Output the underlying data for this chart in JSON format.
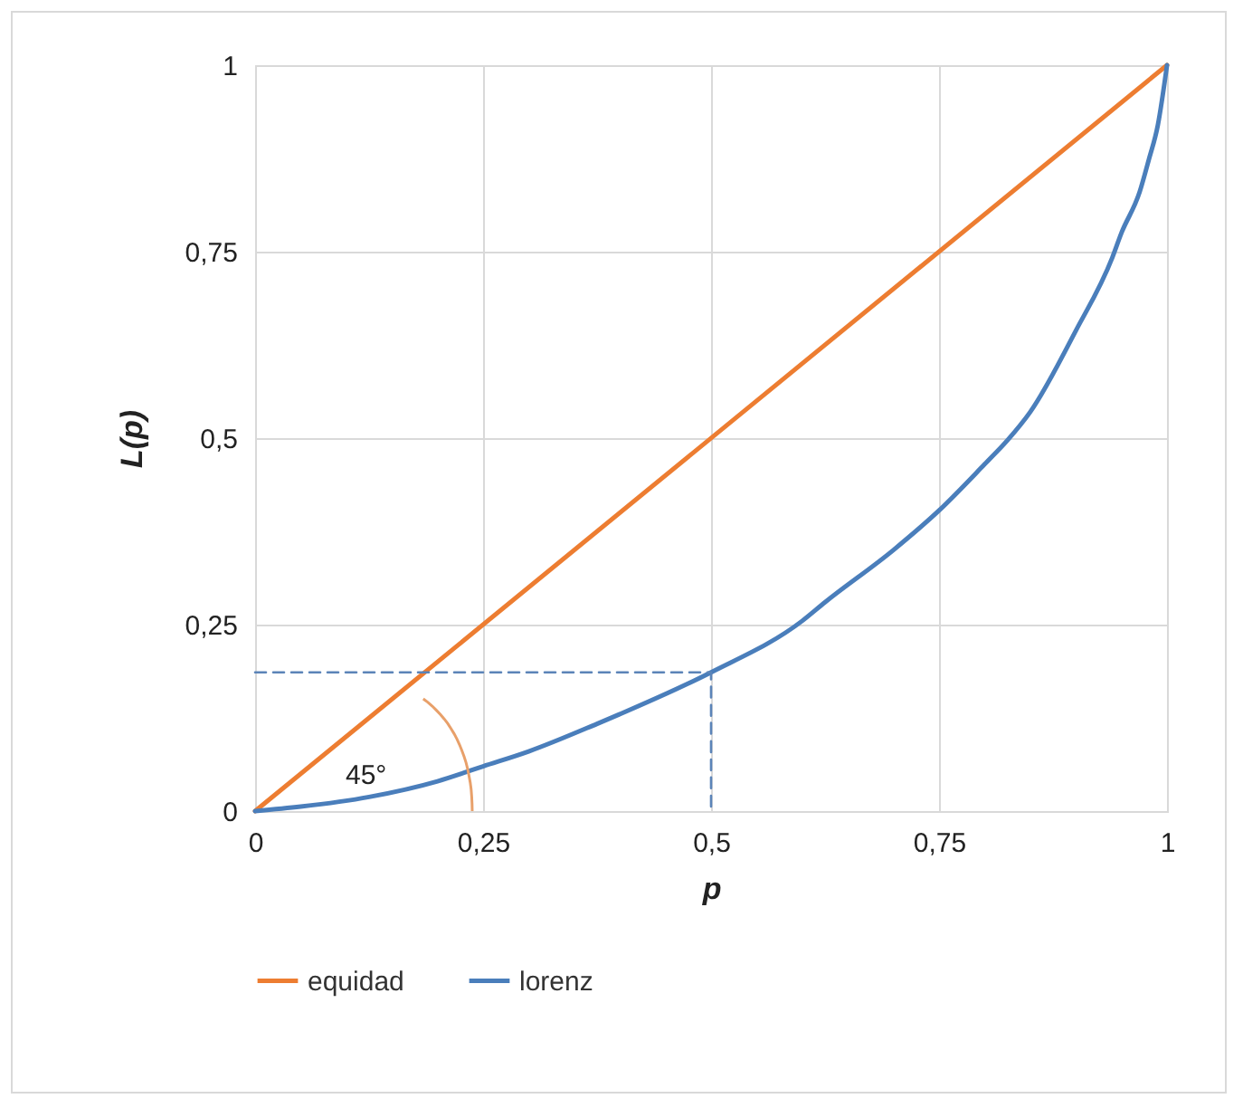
{
  "chart_data": {
    "type": "line",
    "xlabel": "p",
    "ylabel": "L(p)",
    "xlim": [
      0,
      1
    ],
    "ylim": [
      0,
      1
    ],
    "xticks": [
      0,
      {
        "value": 0.25,
        "label": "0,25"
      },
      {
        "value": 0.5,
        "label": "0,5"
      },
      {
        "value": 0.75,
        "label": "0,75"
      },
      1
    ],
    "yticks": [
      0,
      {
        "value": 0.25,
        "label": "0,25"
      },
      {
        "value": 0.5,
        "label": "0,5"
      },
      {
        "value": 0.75,
        "label": "0,75"
      },
      1
    ],
    "grid": true,
    "legend": "bottom",
    "marker": "none",
    "annotations": [
      "45°"
    ],
    "series": [
      {
        "name": "equidad",
        "color": "#ed7d31",
        "x": [
          0,
          1
        ],
        "values": [
          0,
          1
        ]
      },
      {
        "name": "lorenz",
        "color": "#4a7ebb",
        "x": [
          0,
          0.05,
          0.125,
          0.2,
          0.25,
          0.3,
          0.375,
          0.4,
          0.5,
          0.6,
          0.625,
          0.7,
          0.75,
          0.8,
          0.825,
          0.85,
          0.9,
          0.94,
          0.95,
          0.97,
          0.98,
          0.99,
          1
        ],
        "values": [
          0,
          0.006,
          0.019,
          0.04,
          0.06,
          0.08,
          0.117,
          0.13,
          0.186,
          0.255,
          0.28,
          0.35,
          0.403,
          0.465,
          0.497,
          0.535,
          0.644,
          0.742,
          0.775,
          0.83,
          0.873,
          0.92,
          1
        ]
      },
      {
        "color": "#5b84b8",
        "line_style": "dashed",
        "x": [
          0,
          0.5,
          0.5
        ],
        "values": [
          0.186,
          0.186,
          0
        ]
      }
    ]
  }
}
